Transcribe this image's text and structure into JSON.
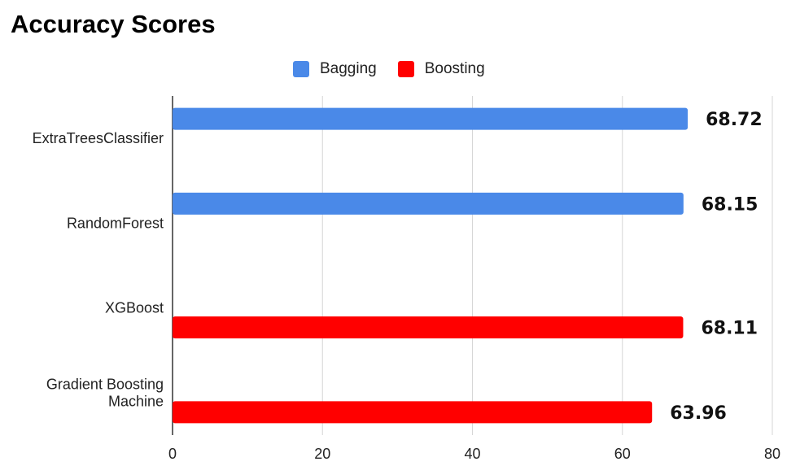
{
  "chart_data": {
    "type": "bar",
    "orientation": "horizontal",
    "title": "Accuracy Scores",
    "xlabel": "",
    "ylabel": "",
    "categories": [
      "ExtraTreesClassifier",
      "RandomForest",
      "XGBoost",
      "Gradient Boosting Machine"
    ],
    "category_lines": [
      [
        "ExtraTreesClassifier"
      ],
      [
        "RandomForest"
      ],
      [
        "XGBoost"
      ],
      [
        "Gradient Boosting",
        "Machine"
      ]
    ],
    "series": [
      {
        "name": "Bagging",
        "color": "#4a89e8",
        "values": [
          68.72,
          68.15,
          null,
          null
        ]
      },
      {
        "name": "Boosting",
        "color": "#ff0000",
        "values": [
          null,
          null,
          68.11,
          63.96
        ]
      }
    ],
    "data_labels": [
      "68.72",
      "68.15",
      "68.11",
      "63.96"
    ],
    "xlim": [
      0,
      80
    ],
    "xticks": [
      0,
      20,
      40,
      60,
      80
    ],
    "grid": true,
    "legend_position": "top"
  }
}
